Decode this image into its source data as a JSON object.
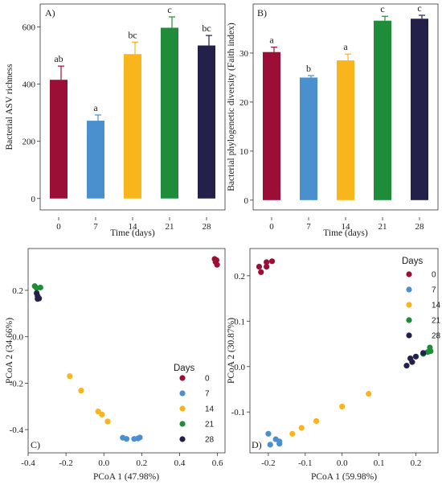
{
  "colors": {
    "day_0": "#9b0f37",
    "day_7": "#4a90cf",
    "day_14": "#f8b51c",
    "day_21": "#1f8c3a",
    "day_28": "#23204a",
    "error_bar": "#9b0f37"
  },
  "chart_data": [
    {
      "type": "bar",
      "panel_label": "A)",
      "categories": [
        "0",
        "7",
        "14",
        "21",
        "28"
      ],
      "values": [
        415,
        272,
        505,
        597,
        535
      ],
      "errors": [
        48,
        20,
        42,
        38,
        35
      ],
      "significance": [
        "ab",
        "a",
        "bc",
        "c",
        "bc"
      ],
      "yticks": [
        0,
        200,
        400,
        600
      ],
      "ylim": [
        -40,
        680
      ],
      "xlabel": "Time (days)",
      "ylabel": "Bacterial ASV richness",
      "grid": false
    },
    {
      "type": "bar",
      "panel_label": "B)",
      "categories": [
        "0",
        "7",
        "14",
        "21",
        "28"
      ],
      "values": [
        30.2,
        25.0,
        28.5,
        36.6,
        37.0
      ],
      "errors": [
        1.0,
        0.4,
        1.3,
        0.9,
        0.7
      ],
      "significance": [
        "a",
        "b",
        "a",
        "c",
        "c"
      ],
      "yticks": [
        0,
        10,
        20,
        30
      ],
      "ylim": [
        -2,
        40
      ],
      "xlabel": "Time (days)",
      "ylabel": "Bacterial phylogenetic diversity (Faith index)",
      "grid": false
    },
    {
      "type": "scatter",
      "panel_label": "C)",
      "xlabel": "PCoA 1 (47.98%)",
      "ylabel": "PCoA 2 (34.66%)",
      "xticks": [
        -0.4,
        -0.2,
        0.0,
        0.2,
        0.4,
        0.6
      ],
      "yticks": [
        -0.4,
        -0.2,
        0.0,
        0.2
      ],
      "xlim": [
        -0.4,
        0.64
      ],
      "ylim": [
        -0.5,
        0.38
      ],
      "legend_title": "Days",
      "legend_position": "bottom-right",
      "series": [
        {
          "name": "0",
          "points": [
            [
              0.585,
              0.335
            ],
            [
              0.595,
              0.33
            ],
            [
              0.59,
              0.322
            ],
            [
              0.598,
              0.31
            ],
            [
              0.592,
              0.33
            ]
          ]
        },
        {
          "name": "7",
          "points": [
            [
              0.1,
              -0.435
            ],
            [
              0.12,
              -0.44
            ],
            [
              0.16,
              -0.44
            ],
            [
              0.18,
              -0.438
            ],
            [
              0.19,
              -0.434
            ]
          ]
        },
        {
          "name": "14",
          "points": [
            [
              -0.18,
              -0.17
            ],
            [
              -0.12,
              -0.232
            ],
            [
              -0.03,
              -0.322
            ],
            [
              -0.01,
              -0.335
            ],
            [
              0.02,
              -0.365
            ]
          ]
        },
        {
          "name": "21",
          "points": [
            [
              -0.365,
              0.218
            ],
            [
              -0.355,
              0.21
            ],
            [
              -0.335,
              0.212
            ]
          ]
        },
        {
          "name": "28",
          "points": [
            [
              -0.355,
              0.188
            ],
            [
              -0.35,
              0.175
            ],
            [
              -0.342,
              0.165
            ],
            [
              -0.35,
              0.163
            ]
          ]
        }
      ]
    },
    {
      "type": "scatter",
      "panel_label": "D)",
      "xlabel": "PCoA 1 (59.98%)",
      "ylabel": "PCoA 2 (30.87%)",
      "xticks": [
        -0.2,
        -0.1,
        0.0,
        0.1,
        0.2
      ],
      "yticks": [
        -0.1,
        0.0,
        0.1,
        0.2
      ],
      "xlim": [
        -0.25,
        0.26
      ],
      "ylim": [
        -0.19,
        0.26
      ],
      "legend_title": "Days",
      "legend_position": "top-right",
      "series": [
        {
          "name": "0",
          "points": [
            [
              -0.225,
              0.22
            ],
            [
              -0.205,
              0.23
            ],
            [
              -0.19,
              0.232
            ],
            [
              -0.205,
              0.22
            ],
            [
              -0.22,
              0.208
            ]
          ]
        },
        {
          "name": "7",
          "points": [
            [
              -0.2,
              -0.148
            ],
            [
              -0.18,
              -0.16
            ],
            [
              -0.17,
              -0.17
            ],
            [
              -0.195,
              -0.172
            ],
            [
              -0.17,
              -0.165
            ]
          ]
        },
        {
          "name": "14",
          "points": [
            [
              -0.135,
              -0.148
            ],
            [
              -0.11,
              -0.135
            ],
            [
              -0.07,
              -0.12
            ],
            [
              0.0,
              -0.088
            ],
            [
              0.072,
              -0.06
            ]
          ]
        },
        {
          "name": "21",
          "points": [
            [
              0.22,
              0.028
            ],
            [
              0.232,
              0.032
            ],
            [
              0.24,
              0.034
            ],
            [
              0.238,
              0.042
            ]
          ]
        },
        {
          "name": "28",
          "points": [
            [
              0.175,
              0.002
            ],
            [
              0.19,
              0.01
            ],
            [
              0.2,
              0.022
            ],
            [
              0.185,
              0.018
            ],
            [
              0.22,
              0.03
            ]
          ]
        }
      ]
    }
  ]
}
